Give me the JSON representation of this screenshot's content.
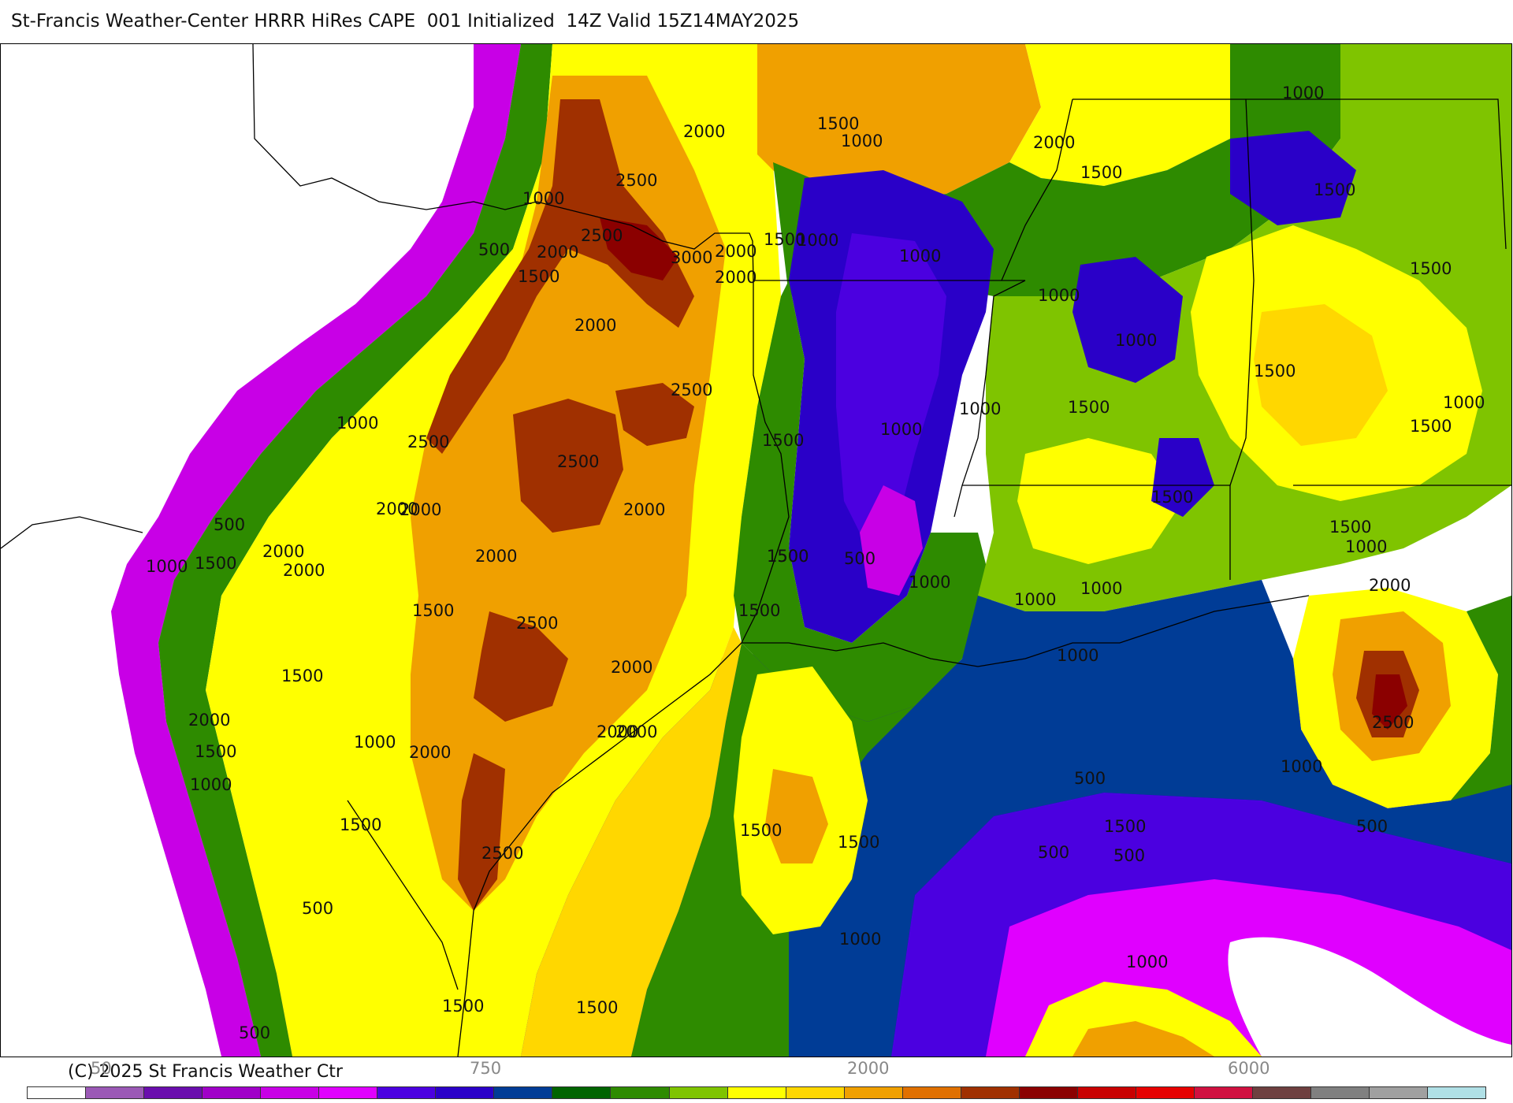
{
  "title": "St-Francis Weather-Center HRRR HiRes CAPE  001 Initialized  14Z Valid 15Z14MAY2025",
  "copyright": "(C) 2025 St Francis Weather Ctr",
  "colorbar": {
    "colors": [
      "#ffffff",
      "#9b59b6",
      "#6a0dad",
      "#a000c8",
      "#c800e6",
      "#e000ff",
      "#4b00e0",
      "#2a00c8",
      "#003c96",
      "#006400",
      "#2e8b00",
      "#7fc400",
      "#ffff00",
      "#ffd700",
      "#f0a000",
      "#e07000",
      "#a03000",
      "#8b0000",
      "#c80000",
      "#e60000",
      "#d01040",
      "#6e4040",
      "#808080",
      "#a0a0a0",
      "#b0e0e6"
    ],
    "labels": [
      "50",
      "750",
      "2000",
      "6000"
    ]
  },
  "contour_labels": [
    "1000",
    "500",
    "2000",
    "1500",
    "2500",
    "3000",
    "2000",
    "2500",
    "2000",
    "1500",
    "1000",
    "1500",
    "2000",
    "1000",
    "1000",
    "1500",
    "1000",
    "1500",
    "2000",
    "1500",
    "1000",
    "1500",
    "1000",
    "1500",
    "1000",
    "1000",
    "1500",
    "1000",
    "2500",
    "2000",
    "1000",
    "2500",
    "2000",
    "1500",
    "2000",
    "2500",
    "2000",
    "2000",
    "2000",
    "2500",
    "2000",
    "1500",
    "1500",
    "2000",
    "1500",
    "2000",
    "1500",
    "1000",
    "500",
    "1000",
    "1500",
    "1000",
    "1500",
    "2000",
    "2000",
    "2500",
    "2000",
    "1500",
    "1500",
    "1000",
    "1000",
    "1000",
    "1000",
    "1500",
    "1500",
    "2000",
    "1000",
    "2500",
    "1000",
    "500",
    "500",
    "500",
    "500",
    "500",
    "1500",
    "1500",
    "1500",
    "1000",
    "1000",
    "500",
    "1500",
    "1500",
    "500"
  ]
}
